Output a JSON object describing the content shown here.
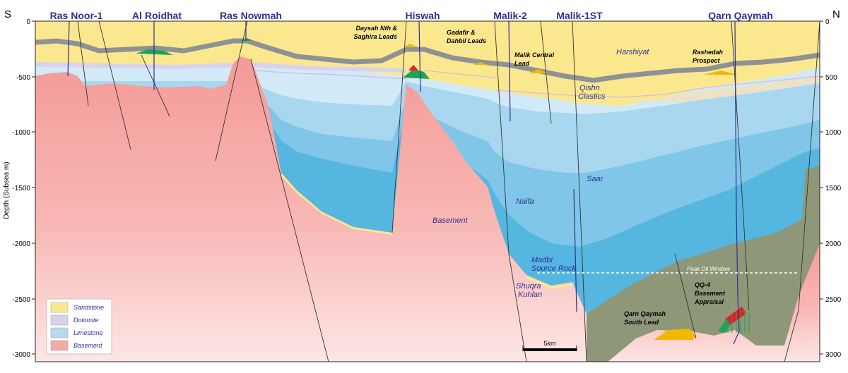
{
  "section": {
    "direction_left": "S",
    "direction_right": "N",
    "axis_title": "Depth (Subsea m)",
    "ticks": [
      "0",
      "-500",
      "-1000",
      "-1500",
      "-2000",
      "-2500",
      "-3000"
    ],
    "ticks_right": [
      "0",
      "500",
      "1000",
      "1500",
      "2000",
      "2500",
      "3000"
    ]
  },
  "wells": [
    {
      "name": "Ras Noor-1"
    },
    {
      "name": "Al Roidhat"
    },
    {
      "name": "Ras Nowmah"
    },
    {
      "name": "Hiswah"
    },
    {
      "name": "Malik-2"
    },
    {
      "name": "Malik-1ST"
    },
    {
      "name": "Qarn Qaymah"
    }
  ],
  "units": {
    "harshiyat": "Harshiyat",
    "qishn_1": "Qishn",
    "qishn_2": "Clastics",
    "saar": "Saar",
    "naifa": "Naifa",
    "basement": "Basement",
    "madbi_1": "Madbi",
    "madbi_2": "Source Rock",
    "shuqra_1": "Shuqra",
    "shuqra_2": "Kuhlan"
  },
  "leads": {
    "daysah_1": "Daysah Nth &",
    "daysah_2": "Saghira Leads",
    "gadafir_1": "Gadafir &",
    "gadafir_2": "Dahbil Leads",
    "malik_central_1": "Malik Central",
    "malik_central_2": "Lead",
    "rashedah_1": "Rashedah",
    "rashedah_2": "Prospect",
    "qq4_1": "QQ-4",
    "qq4_2": "Basement",
    "qq4_3": "Appraisal",
    "qq_south_1": "Qarn Qaymah",
    "qq_south_2": "South Lead"
  },
  "peak_oil_window": "Peak Oil Window",
  "scale_bar": "5km",
  "legend": [
    {
      "label": "Sandstone",
      "color": "#fbe88e"
    },
    {
      "label": "Dolomite",
      "color": "#d9d2ee"
    },
    {
      "label": "Limestone",
      "color": "#b8daf0"
    },
    {
      "label": "Basement",
      "color": "#f7a9a6"
    }
  ],
  "colors": {
    "sandstone": "#fbe88e",
    "dolomite": "#d9d2ee",
    "limestone_light": "#cde6f5",
    "limestone_mid": "#9fd0ec",
    "limestone_deep": "#55b6e0",
    "shale": "#8e9777",
    "basement": "#f7a9a6",
    "marker_band": "#8f9294",
    "oil": "#f2b800",
    "gas": "#e31e24",
    "trap": "#1fa35a"
  }
}
